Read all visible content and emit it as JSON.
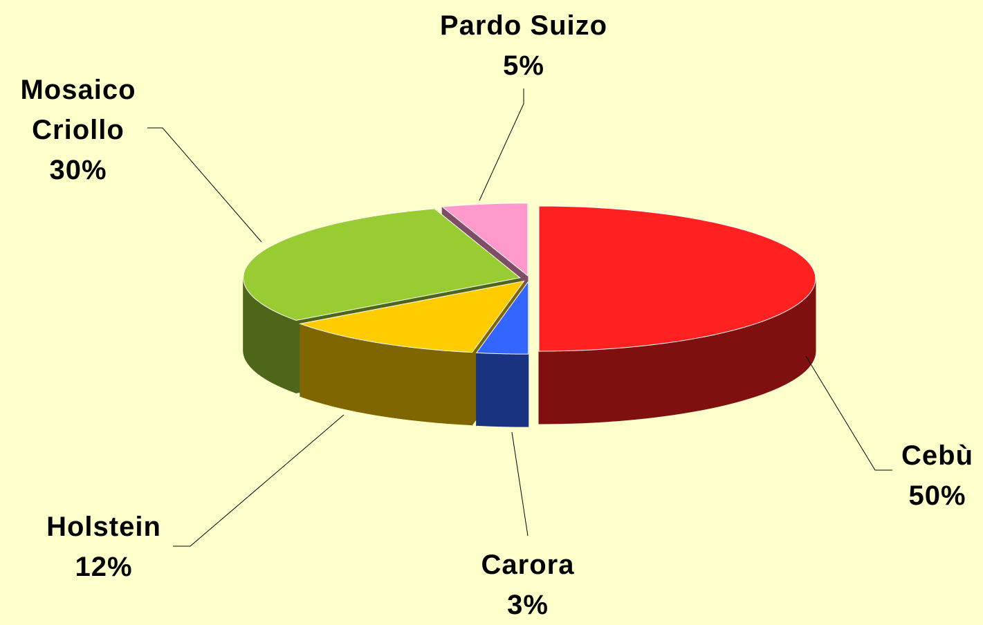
{
  "chart_data": {
    "type": "pie",
    "categories": [
      "Cebù",
      "Carora",
      "Holstein",
      "Mosaico Criollo",
      "Pardo Suizo"
    ],
    "values": [
      50,
      3,
      12,
      30,
      5
    ],
    "value_labels": [
      "50%",
      "3%",
      "12%",
      "30%",
      "5%"
    ],
    "colors": [
      "#ff2020",
      "#3366ff",
      "#ffcc00",
      "#99cc33",
      "#ff99cc"
    ]
  }
}
